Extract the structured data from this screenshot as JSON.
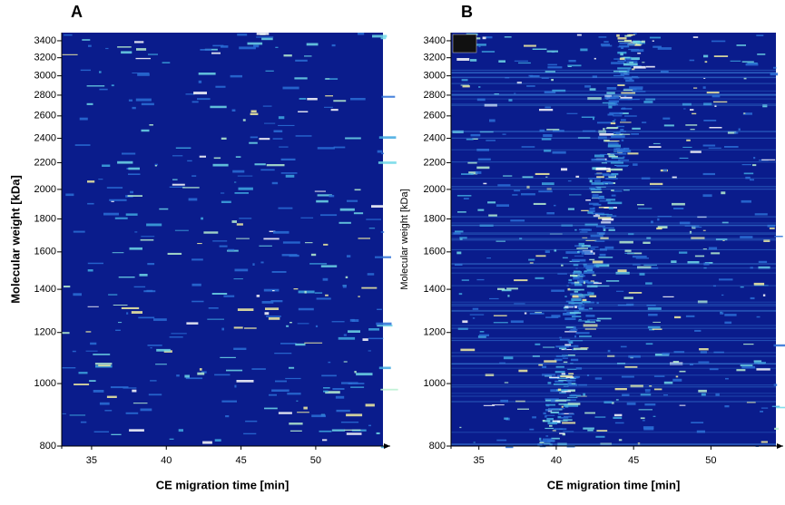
{
  "chart_data": [
    {
      "type": "heatmap",
      "panel_label": "A",
      "xlabel": "CE migration time [min]",
      "ylabel": "Molecular weight [kDa]",
      "xlim": [
        33,
        54.5
      ],
      "xticks": [
        35,
        40,
        45,
        50
      ],
      "ylim": [
        800,
        3500
      ],
      "log_scale": true,
      "yticks": [
        800,
        1000,
        1200,
        1400,
        1600,
        1800,
        2000,
        2200,
        2400,
        2600,
        2800,
        3000,
        3200,
        3400
      ],
      "color": "#0a1c8c"
    },
    {
      "type": "heatmap",
      "panel_label": "B",
      "xlabel": "CE migration time [min]",
      "ylabel": "Molecular weight [kDa]",
      "xlim": [
        33.2,
        54.2
      ],
      "xticks": [
        35,
        40,
        45,
        50
      ],
      "ylim": [
        800,
        3500
      ],
      "log_scale": true,
      "yticks": [
        800,
        1000,
        1200,
        1400,
        1600,
        1800,
        2000,
        2200,
        2400,
        2600,
        2800,
        3000,
        3200,
        3400
      ],
      "color": "#0a1c8c"
    }
  ]
}
